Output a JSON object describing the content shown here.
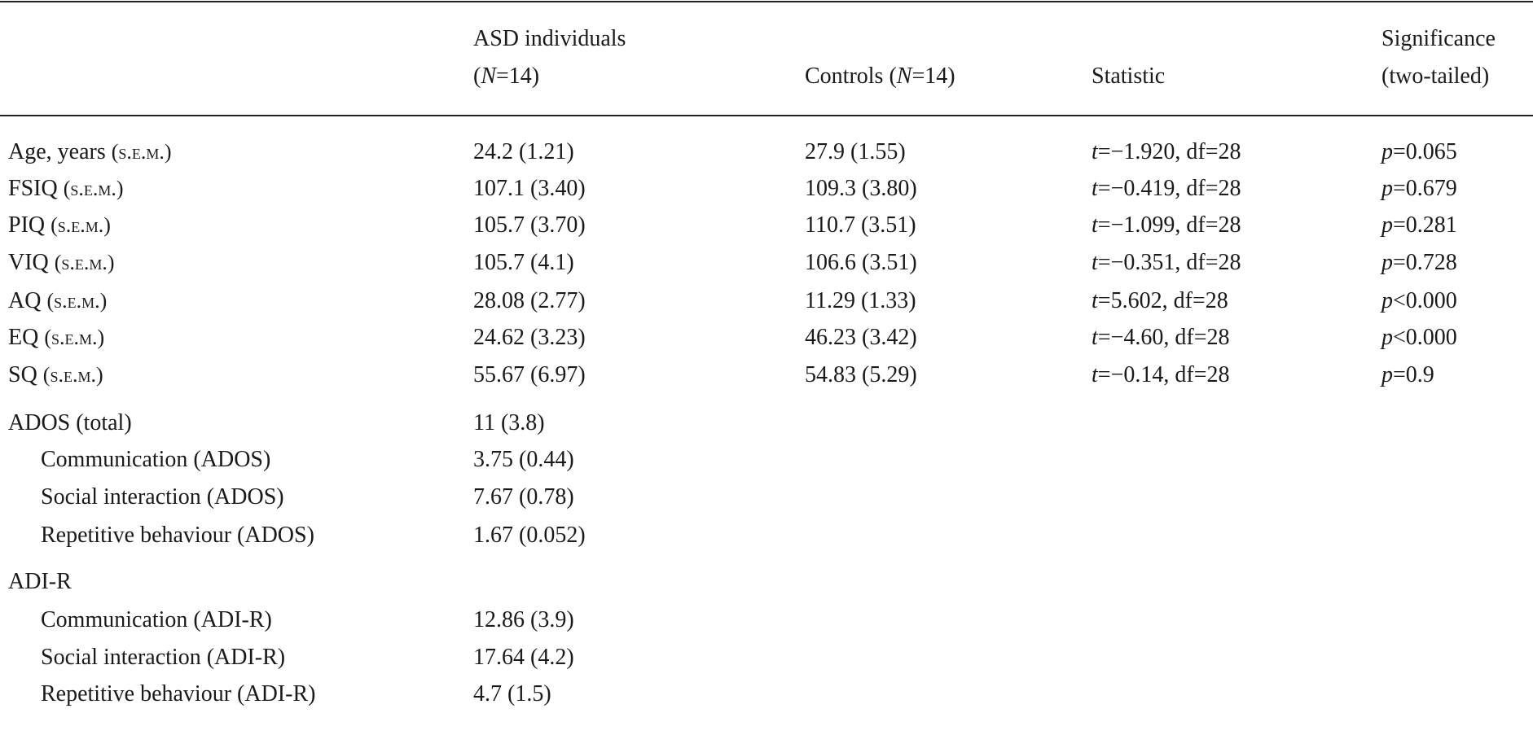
{
  "table": {
    "header": {
      "asd": [
        "ASD individuals",
        "(N=14)"
      ],
      "controls": "Controls (N=14)",
      "statistic": "Statistic",
      "significance": [
        "Significance",
        "(two-tailed)"
      ]
    },
    "rows": [
      {
        "label": "Age, years",
        "unit": "(s.e.m.)",
        "asd": "24.2 (1.21)",
        "controls": "27.9 (1.55)",
        "statistic": "t=−1.920, df=28",
        "significance": "p=0.065"
      },
      {
        "label": "FSIQ",
        "unit": "(s.e.m.)",
        "asd": "107.1 (3.40)",
        "controls": "109.3 (3.80)",
        "statistic": "t=−0.419, df=28",
        "significance": "p=0.679"
      },
      {
        "label": "PIQ",
        "unit": "(s.e.m.)",
        "asd": "105.7 (3.70)",
        "controls": "110.7 (3.51)",
        "statistic": "t=−1.099, df=28",
        "significance": "p=0.281"
      },
      {
        "label": "VIQ",
        "unit": "(s.e.m.)",
        "asd": "105.7 (4.1)",
        "controls": "106.6 (3.51)",
        "statistic": "t=−0.351, df=28",
        "significance": "p=0.728"
      },
      {
        "label": "AQ",
        "unit": "(s.e.m.)",
        "asd": "28.08 (2.77)",
        "controls": "11.29 (1.33)",
        "statistic": "t=5.602, df=28",
        "significance": "p<0.000"
      },
      {
        "label": "EQ",
        "unit": "(s.e.m.)",
        "asd": "24.62 (3.23)",
        "controls": "46.23 (3.42)",
        "statistic": "t=−4.60, df=28",
        "significance": "p<0.000"
      },
      {
        "label": "SQ",
        "unit": "(s.e.m.)",
        "asd": "55.67 (6.97)",
        "controls": "54.83 (5.29)",
        "statistic": "t=−0.14, df=28",
        "significance": "p=0.9"
      }
    ],
    "ados": {
      "label": "ADOS (total)",
      "value": "11 (3.8)",
      "items": [
        {
          "label": "Communication (ADOS)",
          "value": "3.75 (0.44)"
        },
        {
          "label": "Social interaction (ADOS)",
          "value": "7.67 (0.78)"
        },
        {
          "label": "Repetitive behaviour (ADOS)",
          "value": "1.67 (0.052)"
        }
      ]
    },
    "adir": {
      "label": "ADI-R",
      "items": [
        {
          "label": "Communication (ADI-R)",
          "value": "12.86 (3.9)"
        },
        {
          "label": "Social interaction (ADI-R)",
          "value": "17.64 (4.2)"
        },
        {
          "label": "Repetitive behaviour (ADI-R)",
          "value": "4.7 (1.5)"
        }
      ]
    }
  }
}
